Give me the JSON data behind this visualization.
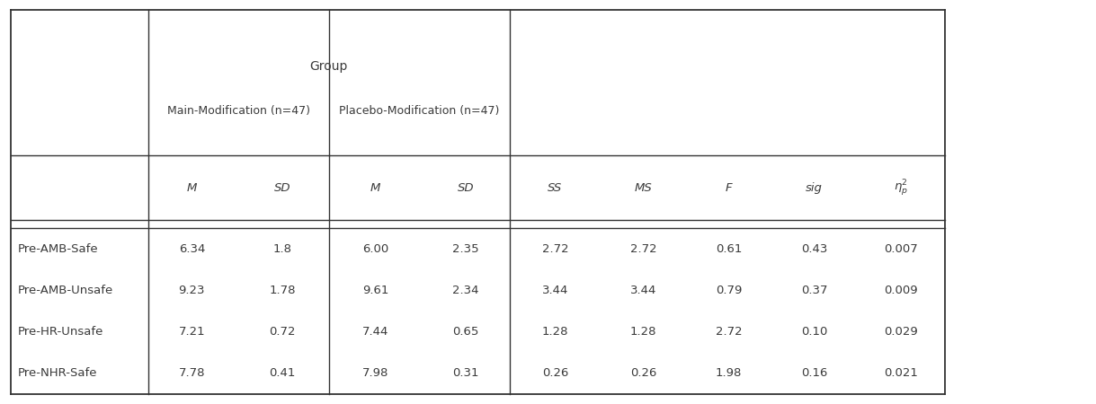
{
  "group_header": "Group",
  "group1": "Main-Modification (n=47)",
  "group2": "Placebo-Modification (n=47)",
  "col_header_labels": [
    "M",
    "SD",
    "M",
    "SD",
    "SS",
    "MS",
    "F",
    "sig"
  ],
  "eta_label": "$\\eta_p^2$",
  "rows": [
    [
      "Pre-AMB-Safe",
      "6.34",
      "1.8",
      "6.00",
      "2.35",
      "2.72",
      "2.72",
      "0.61",
      "0.43",
      "0.007"
    ],
    [
      "Pre-AMB-Unsafe",
      "9.23",
      "1.78",
      "9.61",
      "2.34",
      "3.44",
      "3.44",
      "0.79",
      "0.37",
      "0.009"
    ],
    [
      "Pre-HR-Unsafe",
      "7.21",
      "0.72",
      "7.44",
      "0.65",
      "1.28",
      "1.28",
      "2.72",
      "0.10",
      "0.029"
    ],
    [
      "Pre-NHR-Safe",
      "7.78",
      "0.41",
      "7.98",
      "0.31",
      "0.26",
      "0.26",
      "1.98",
      "0.16",
      "0.021"
    ]
  ],
  "bg_color": "#ffffff",
  "text_color": "#3a3a3a",
  "line_color": "#333333",
  "font_size": 9.5
}
